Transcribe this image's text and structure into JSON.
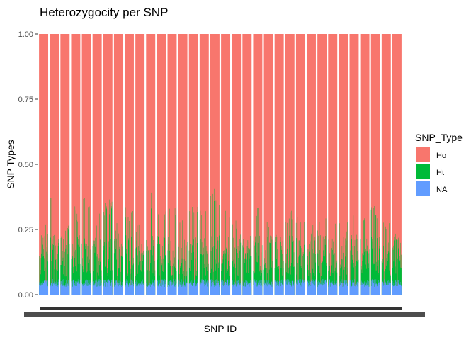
{
  "chart_data": {
    "type": "bar",
    "stacked": true,
    "title": "Heterozygocity per SNP",
    "xlabel": "SNP ID",
    "ylabel": "SNP Types",
    "ylim": [
      0,
      1
    ],
    "yticks": [
      "0.00",
      "0.25",
      "0.50",
      "0.75",
      "1.00"
    ],
    "legend": {
      "title": "SNP_Type",
      "position": "right",
      "items": [
        {
          "name": "Ho",
          "color": "#F8766D"
        },
        {
          "name": "Ht",
          "color": "#00BA38"
        },
        {
          "name": "NA",
          "color": "#619CFF"
        }
      ]
    },
    "grid": false,
    "bar_groups": 34,
    "series_note_ht_top_peaks": [
      0.27,
      0.38,
      0.3,
      0.34,
      0.4,
      0.33,
      0.37,
      0.28,
      0.35,
      0.3,
      0.41,
      0.34,
      0.37,
      0.29,
      0.38,
      0.34,
      0.41,
      0.33,
      0.31,
      0.37,
      0.35,
      0.29,
      0.38,
      0.33,
      0.3,
      0.29,
      0.3,
      0.3,
      0.29,
      0.33,
      0.32,
      0.36,
      0.3,
      0.25
    ],
    "na_level_range": [
      0.03,
      0.06
    ]
  }
}
